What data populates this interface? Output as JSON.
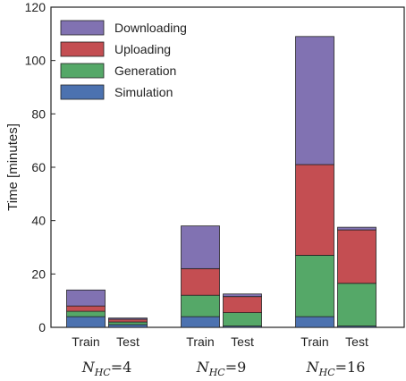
{
  "chart_data": {
    "type": "bar",
    "stacked": true,
    "ylabel": "Time [minutes]",
    "ylim": [
      0,
      120
    ],
    "yticks": [
      "0",
      "20",
      "40",
      "60",
      "80",
      "100",
      "120"
    ],
    "grid": false,
    "legend_position": "top-left",
    "bars": [
      "Train",
      "Test",
      "Train",
      "Test",
      "Train",
      "Test"
    ],
    "groups": [
      {
        "N": "N",
        "sub": "HC",
        "eq": "=4"
      },
      {
        "N": "N",
        "sub": "HC",
        "eq": "=9"
      },
      {
        "N": "N",
        "sub": "HC",
        "eq": "=16"
      }
    ],
    "series": [
      {
        "name": "Simulation",
        "color": "#4c72b0",
        "values": [
          4,
          1,
          4,
          0.5,
          4,
          0.5
        ]
      },
      {
        "name": "Generation",
        "color": "#55a868",
        "values": [
          2,
          1,
          8,
          5,
          23,
          16
        ]
      },
      {
        "name": "Uploading",
        "color": "#c44e52",
        "values": [
          2,
          1,
          10,
          6,
          34,
          20
        ]
      },
      {
        "name": "Downloading",
        "color": "#8172b2",
        "values": [
          6,
          0.5,
          16,
          1,
          48,
          1
        ]
      }
    ]
  }
}
